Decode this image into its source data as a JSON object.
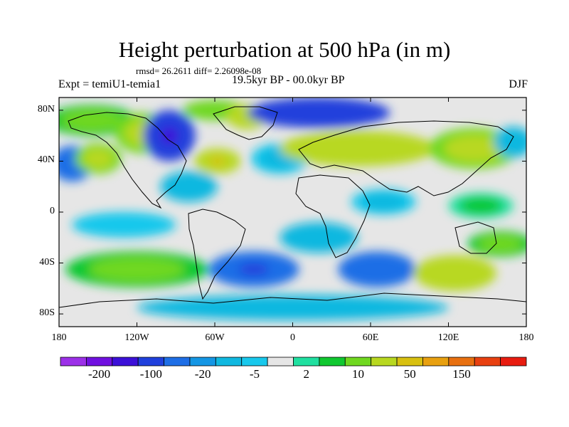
{
  "title": "Height perturbation at 500 hPa (in m)",
  "stats": "rmsd= 26.2611  diff= 2.26098e-08",
  "experiment": "Expt = temiU1-temia1",
  "period": "19.5kyr BP - 00.0kyr BP",
  "season": "DJF",
  "map": {
    "lon_range": [
      -180,
      180
    ],
    "lat_range": [
      -90,
      90
    ],
    "projection": "cylindrical-equidistant",
    "background_color": "#e6e6e6",
    "coastline_color": "#000000",
    "x_ticks": [
      {
        "lon": -180,
        "label": "180"
      },
      {
        "lon": -120,
        "label": "120W"
      },
      {
        "lon": -60,
        "label": "60W"
      },
      {
        "lon": 0,
        "label": "0"
      },
      {
        "lon": 60,
        "label": "60E"
      },
      {
        "lon": 120,
        "label": "120E"
      },
      {
        "lon": 180,
        "label": "180"
      }
    ],
    "y_ticks": [
      {
        "lat": 80,
        "label": "80N"
      },
      {
        "lat": 40,
        "label": "40N"
      },
      {
        "lat": 0,
        "label": "0"
      },
      {
        "lat": -40,
        "label": "40S"
      },
      {
        "lat": -80,
        "label": "80S"
      }
    ],
    "anomalies": [
      {
        "lon": -170,
        "lat": 38,
        "rx": 16,
        "ry": 14,
        "value": -40
      },
      {
        "lon": -155,
        "lat": 72,
        "rx": 35,
        "ry": 12,
        "value": 12
      },
      {
        "lon": -150,
        "lat": 42,
        "rx": 18,
        "ry": 12,
        "value": 20
      },
      {
        "lon": -115,
        "lat": 62,
        "rx": 22,
        "ry": 16,
        "value": 25
      },
      {
        "lon": -95,
        "lat": 60,
        "rx": 20,
        "ry": 20,
        "value": -110
      },
      {
        "lon": -80,
        "lat": 20,
        "rx": 22,
        "ry": 12,
        "value": -8
      },
      {
        "lon": -58,
        "lat": 40,
        "rx": 18,
        "ry": 10,
        "value": 60
      },
      {
        "lon": -60,
        "lat": 80,
        "rx": 25,
        "ry": 8,
        "value": 15
      },
      {
        "lon": -35,
        "lat": 75,
        "rx": 16,
        "ry": 10,
        "value": 30
      },
      {
        "lon": -10,
        "lat": 42,
        "rx": 22,
        "ry": 12,
        "value": -6
      },
      {
        "lon": 20,
        "lat": 78,
        "rx": 55,
        "ry": 12,
        "value": -90
      },
      {
        "lon": 50,
        "lat": 50,
        "rx": 60,
        "ry": 14,
        "value": 40
      },
      {
        "lon": 140,
        "lat": 50,
        "rx": 35,
        "ry": 16,
        "value": 25
      },
      {
        "lon": 170,
        "lat": 55,
        "rx": 15,
        "ry": 12,
        "value": -10
      },
      {
        "lon": 70,
        "lat": 8,
        "rx": 25,
        "ry": 10,
        "value": -6
      },
      {
        "lon": 145,
        "lat": 5,
        "rx": 25,
        "ry": 10,
        "value": 6
      },
      {
        "lon": -130,
        "lat": -10,
        "rx": 40,
        "ry": 10,
        "value": -5
      },
      {
        "lon": -120,
        "lat": -45,
        "rx": 55,
        "ry": 14,
        "value": 10
      },
      {
        "lon": -30,
        "lat": -45,
        "rx": 35,
        "ry": 14,
        "value": -60
      },
      {
        "lon": 20,
        "lat": -20,
        "rx": 30,
        "ry": 12,
        "value": -8
      },
      {
        "lon": 65,
        "lat": -45,
        "rx": 30,
        "ry": 14,
        "value": -40
      },
      {
        "lon": 125,
        "lat": -48,
        "rx": 32,
        "ry": 14,
        "value": 40
      },
      {
        "lon": 160,
        "lat": -25,
        "rx": 25,
        "ry": 10,
        "value": 10
      },
      {
        "lon": 0,
        "lat": -75,
        "rx": 120,
        "ry": 10,
        "value": -8
      }
    ]
  },
  "colorbar": {
    "colors": [
      "#9c30e8",
      "#7010e0",
      "#3c10d8",
      "#2040dc",
      "#1e6ee6",
      "#1496e4",
      "#10b8e0",
      "#18c8ec",
      "#e6e6e6",
      "#20e0a0",
      "#10c830",
      "#70d820",
      "#b8d820",
      "#d8c010",
      "#e8a010",
      "#e87010",
      "#e84010",
      "#e81c10"
    ],
    "labels": [
      "-200",
      "-100",
      "-20",
      "-5",
      "2",
      "10",
      "50",
      "150"
    ]
  }
}
